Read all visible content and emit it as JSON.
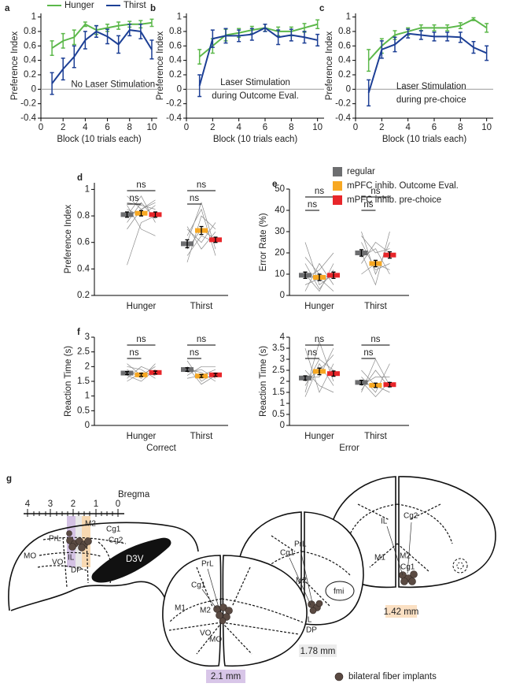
{
  "chart_data": [
    {
      "type": "line",
      "panel": "a",
      "ylabel": "Preference Index",
      "xlabel": "Block (10 trials each)",
      "x": [
        1,
        2,
        3,
        4,
        5,
        6,
        7,
        8,
        9,
        10
      ],
      "xlim": [
        0,
        10.5
      ],
      "xticks": [
        0,
        2,
        4,
        6,
        8,
        10
      ],
      "ylim": [
        -0.4,
        1.05
      ],
      "yticks": [
        -0.4,
        -0.2,
        0,
        0.2,
        0.4,
        0.6,
        0.8,
        1
      ],
      "reference_line": 0,
      "annotation": [
        "No Laser Stimulation"
      ],
      "legend": "top",
      "series": [
        {
          "name": "Hunger",
          "color": "#5cb84a",
          "values": [
            0.57,
            0.67,
            0.72,
            0.9,
            0.82,
            0.85,
            0.88,
            0.9,
            0.9,
            0.92
          ],
          "errors": [
            0.1,
            0.1,
            0.1,
            0.03,
            0.06,
            0.05,
            0.05,
            0.04,
            0.05,
            0.05
          ]
        },
        {
          "name": "Thirst",
          "color": "#1c3f95",
          "values": [
            0.08,
            0.28,
            0.45,
            0.68,
            0.8,
            0.73,
            0.62,
            0.82,
            0.8,
            0.55
          ],
          "errors": [
            0.15,
            0.15,
            0.15,
            0.12,
            0.08,
            0.1,
            0.12,
            0.08,
            0.1,
            0.13
          ]
        }
      ]
    },
    {
      "type": "line",
      "panel": "b",
      "ylabel": "Preference Index",
      "xlabel": "Block (10 trials each)",
      "x": [
        1,
        2,
        3,
        4,
        5,
        6,
        7,
        8,
        9,
        10
      ],
      "xlim": [
        0,
        10.5
      ],
      "xticks": [
        0,
        2,
        4,
        6,
        8,
        10
      ],
      "ylim": [
        -0.4,
        1.05
      ],
      "yticks": [
        -0.4,
        -0.2,
        0,
        0.2,
        0.4,
        0.6,
        0.8,
        1
      ],
      "reference_line": 0,
      "annotation": [
        "Laser Stimulation",
        "during Outcome Eval."
      ],
      "series": [
        {
          "color": "#5cb84a",
          "values": [
            0.45,
            0.6,
            0.75,
            0.78,
            0.82,
            0.85,
            0.8,
            0.8,
            0.85,
            0.9
          ],
          "errors": [
            0.1,
            0.1,
            0.08,
            0.06,
            0.05,
            0.05,
            0.06,
            0.06,
            0.06,
            0.06
          ]
        },
        {
          "color": "#1c3f95",
          "values": [
            0.05,
            0.7,
            0.74,
            0.74,
            0.76,
            0.85,
            0.72,
            0.75,
            0.72,
            0.68
          ],
          "errors": [
            0.15,
            0.12,
            0.1,
            0.08,
            0.08,
            0.05,
            0.1,
            0.08,
            0.08,
            0.08
          ]
        }
      ]
    },
    {
      "type": "line",
      "panel": "c",
      "ylabel": "Preference Index",
      "xlabel": "Block (10 trials each)",
      "x": [
        1,
        2,
        3,
        4,
        5,
        6,
        7,
        8,
        9,
        10
      ],
      "xlim": [
        0,
        10.5
      ],
      "xticks": [
        0,
        2,
        4,
        6,
        8,
        10
      ],
      "ylim": [
        -0.4,
        1.05
      ],
      "yticks": [
        -0.4,
        -0.2,
        0,
        0.2,
        0.4,
        0.6,
        0.8,
        1
      ],
      "reference_line": 0,
      "annotation": [
        "Laser Stimulation",
        "during pre-choice"
      ],
      "series": [
        {
          "color": "#5cb84a",
          "values": [
            0.4,
            0.6,
            0.75,
            0.8,
            0.85,
            0.85,
            0.85,
            0.88,
            0.97,
            0.85
          ],
          "errors": [
            0.15,
            0.1,
            0.06,
            0.05,
            0.04,
            0.04,
            0.04,
            0.04,
            0.02,
            0.06
          ]
        },
        {
          "color": "#1c3f95",
          "values": [
            -0.05,
            0.55,
            0.62,
            0.77,
            0.75,
            0.73,
            0.73,
            0.72,
            0.58,
            0.5
          ],
          "errors": [
            0.18,
            0.12,
            0.1,
            0.06,
            0.06,
            0.06,
            0.06,
            0.07,
            0.08,
            0.1
          ]
        }
      ]
    },
    {
      "type": "dot",
      "panel": "d",
      "ylabel": "Preference Index",
      "categories": [
        "Hunger",
        "Thirst"
      ],
      "ylim": [
        0.2,
        1.05
      ],
      "yticks": [
        0.2,
        0.4,
        0.6,
        0.8,
        1
      ],
      "sig_labels": [
        [
          "ns",
          "ns"
        ],
        [
          "ns",
          "ns"
        ]
      ],
      "series": [
        {
          "color": "#6d6e70",
          "values": [
            0.81,
            0.59
          ],
          "errors": [
            0.02,
            0.03
          ]
        },
        {
          "color": "#f7a823",
          "values": [
            0.82,
            0.69
          ],
          "errors": [
            0.02,
            0.03
          ]
        },
        {
          "color": "#e8262a",
          "values": [
            0.81,
            0.62
          ],
          "errors": [
            0.02,
            0.02
          ]
        }
      ],
      "subjects": [
        [
          [
            0.43,
            0.75,
            0.8
          ],
          [
            0.9,
            0.88,
            0.85
          ],
          [
            0.8,
            0.95,
            0.75
          ],
          [
            0.7,
            0.85,
            0.9
          ],
          [
            0.85,
            0.8,
            0.88
          ],
          [
            0.95,
            0.85,
            0.92
          ],
          [
            0.75,
            0.9,
            0.78
          ],
          [
            0.88,
            0.7,
            0.65
          ]
        ],
        [
          [
            0.45,
            0.8,
            0.7
          ],
          [
            0.6,
            0.9,
            0.55
          ],
          [
            0.55,
            0.7,
            0.62
          ],
          [
            0.7,
            0.6,
            0.75
          ],
          [
            0.65,
            0.85,
            0.5
          ],
          [
            0.5,
            0.65,
            0.6
          ],
          [
            0.72,
            0.55,
            0.68
          ]
        ]
      ]
    },
    {
      "type": "dot",
      "panel": "e",
      "ylabel": "Error Rate (%)",
      "categories": [
        "Hunger",
        "Thirst"
      ],
      "ylim": [
        0,
        50
      ],
      "yticks": [
        0,
        10,
        20,
        30,
        40,
        50
      ],
      "legend": "top-right",
      "sig_labels": [
        [
          "ns",
          "ns"
        ],
        [
          "ns",
          "ns"
        ]
      ],
      "series": [
        {
          "name": "regular",
          "color": "#6d6e70",
          "values": [
            9.5,
            20
          ],
          "errors": [
            1.5,
            1.5
          ]
        },
        {
          "name": "mPFC inhib. Outcome Eval.",
          "color": "#f7a823",
          "values": [
            8.5,
            15
          ],
          "errors": [
            1.5,
            1.5
          ]
        },
        {
          "name": "mPFC inhib. pre-choice",
          "color": "#e8262a",
          "values": [
            9.5,
            19
          ],
          "errors": [
            1.5,
            1.5
          ]
        }
      ],
      "subjects": [
        [
          [
            25,
            5,
            10
          ],
          [
            2,
            15,
            5
          ],
          [
            15,
            3,
            12
          ],
          [
            8,
            12,
            20
          ],
          [
            5,
            8,
            2
          ],
          [
            18,
            10,
            8
          ],
          [
            10,
            2,
            15
          ]
        ],
        [
          [
            30,
            10,
            25
          ],
          [
            15,
            25,
            20
          ],
          [
            25,
            12,
            15
          ],
          [
            20,
            5,
            30
          ],
          [
            10,
            15,
            12
          ],
          [
            28,
            20,
            22
          ],
          [
            18,
            22,
            10
          ]
        ]
      ]
    },
    {
      "type": "dot",
      "panel": "f",
      "ylabel": "Reaction Time (s)",
      "xlabel": "Correct",
      "categories": [
        "Hunger",
        "Thirst"
      ],
      "ylim": [
        0,
        3
      ],
      "yticks": [
        0,
        0.5,
        1,
        1.5,
        2,
        2.5,
        3
      ],
      "sig_labels": [
        [
          "ns",
          "ns"
        ],
        [
          "ns",
          "ns"
        ]
      ],
      "series": [
        {
          "color": "#6d6e70",
          "values": [
            1.78,
            1.9
          ],
          "errors": [
            0.05,
            0.06
          ]
        },
        {
          "color": "#f7a823",
          "values": [
            1.72,
            1.68
          ],
          "errors": [
            0.05,
            0.05
          ]
        },
        {
          "color": "#e8262a",
          "values": [
            1.8,
            1.72
          ],
          "errors": [
            0.05,
            0.05
          ]
        }
      ],
      "subjects": [
        [
          [
            1.9,
            1.6,
            2.1
          ],
          [
            1.5,
            1.8,
            1.7
          ],
          [
            2.0,
            1.9,
            1.6
          ],
          [
            1.7,
            1.5,
            1.9
          ],
          [
            1.6,
            2.0,
            1.8
          ],
          [
            2.1,
            1.7,
            2.0
          ]
        ],
        [
          [
            2.2,
            1.5,
            1.8
          ],
          [
            1.8,
            1.9,
            1.6
          ],
          [
            1.6,
            1.7,
            1.9
          ],
          [
            2.0,
            1.4,
            1.7
          ],
          [
            1.9,
            1.8,
            1.5
          ],
          [
            1.7,
            2.0,
            2.0
          ]
        ]
      ]
    },
    {
      "type": "dot",
      "ylabel": "Reaction Time (s)",
      "xlabel": "Error",
      "categories": [
        "Hunger",
        "Thirst"
      ],
      "ylim": [
        0,
        4
      ],
      "yticks": [
        0,
        0.5,
        1,
        1.5,
        2,
        2.5,
        3,
        3.5,
        4
      ],
      "sig_labels": [
        [
          "ns",
          "ns"
        ],
        [
          "ns",
          "ns"
        ]
      ],
      "series": [
        {
          "color": "#6d6e70",
          "values": [
            2.15,
            1.95
          ],
          "errors": [
            0.1,
            0.1
          ]
        },
        {
          "color": "#f7a823",
          "values": [
            2.45,
            1.82
          ],
          "errors": [
            0.15,
            0.1
          ]
        },
        {
          "color": "#e8262a",
          "values": [
            2.35,
            1.85
          ],
          "errors": [
            0.12,
            0.1
          ]
        }
      ],
      "subjects": [
        [
          [
            3.5,
            1.5,
            2.8
          ],
          [
            1.5,
            3.8,
            2.0
          ],
          [
            2.0,
            2.5,
            3.2
          ],
          [
            2.5,
            1.8,
            1.5
          ],
          [
            1.8,
            3.0,
            2.5
          ],
          [
            2.2,
            2.2,
            3.5
          ],
          [
            1.3,
            2.8,
            1.8
          ]
        ],
        [
          [
            2.2,
            1.5,
            2.8
          ],
          [
            1.5,
            3.0,
            1.8
          ],
          [
            2.5,
            1.8,
            1.5
          ],
          [
            1.8,
            2.2,
            2.2
          ],
          [
            2.0,
            1.3,
            2.0
          ],
          [
            1.6,
            2.5,
            1.7
          ]
        ]
      ]
    }
  ],
  "diagram": {
    "panel": "g",
    "bregma": "Bregma",
    "scale_ticks": [
      "4",
      "3",
      "2",
      "1",
      "0"
    ],
    "sagittal_labels": [
      "PrL",
      "M2",
      "Cg1",
      "Cg2",
      "MO",
      "VO",
      "IL",
      "DP",
      "D3V"
    ],
    "sections": [
      {
        "depth": "2.1 mm",
        "labels": [
          "PrL",
          "Cg1",
          "M2",
          "M1",
          "VO",
          "MO"
        ]
      },
      {
        "depth": "1.78 mm",
        "labels": [
          "PrL",
          "Cg1",
          "M1",
          "M2",
          "IL",
          "DP",
          "fmi"
        ]
      },
      {
        "depth": "1.42 mm",
        "labels": [
          "IL",
          "Cg2",
          "M1",
          "M2",
          "Cg1",
          "DP"
        ]
      }
    ],
    "legend": "bilateral fiber implants"
  }
}
